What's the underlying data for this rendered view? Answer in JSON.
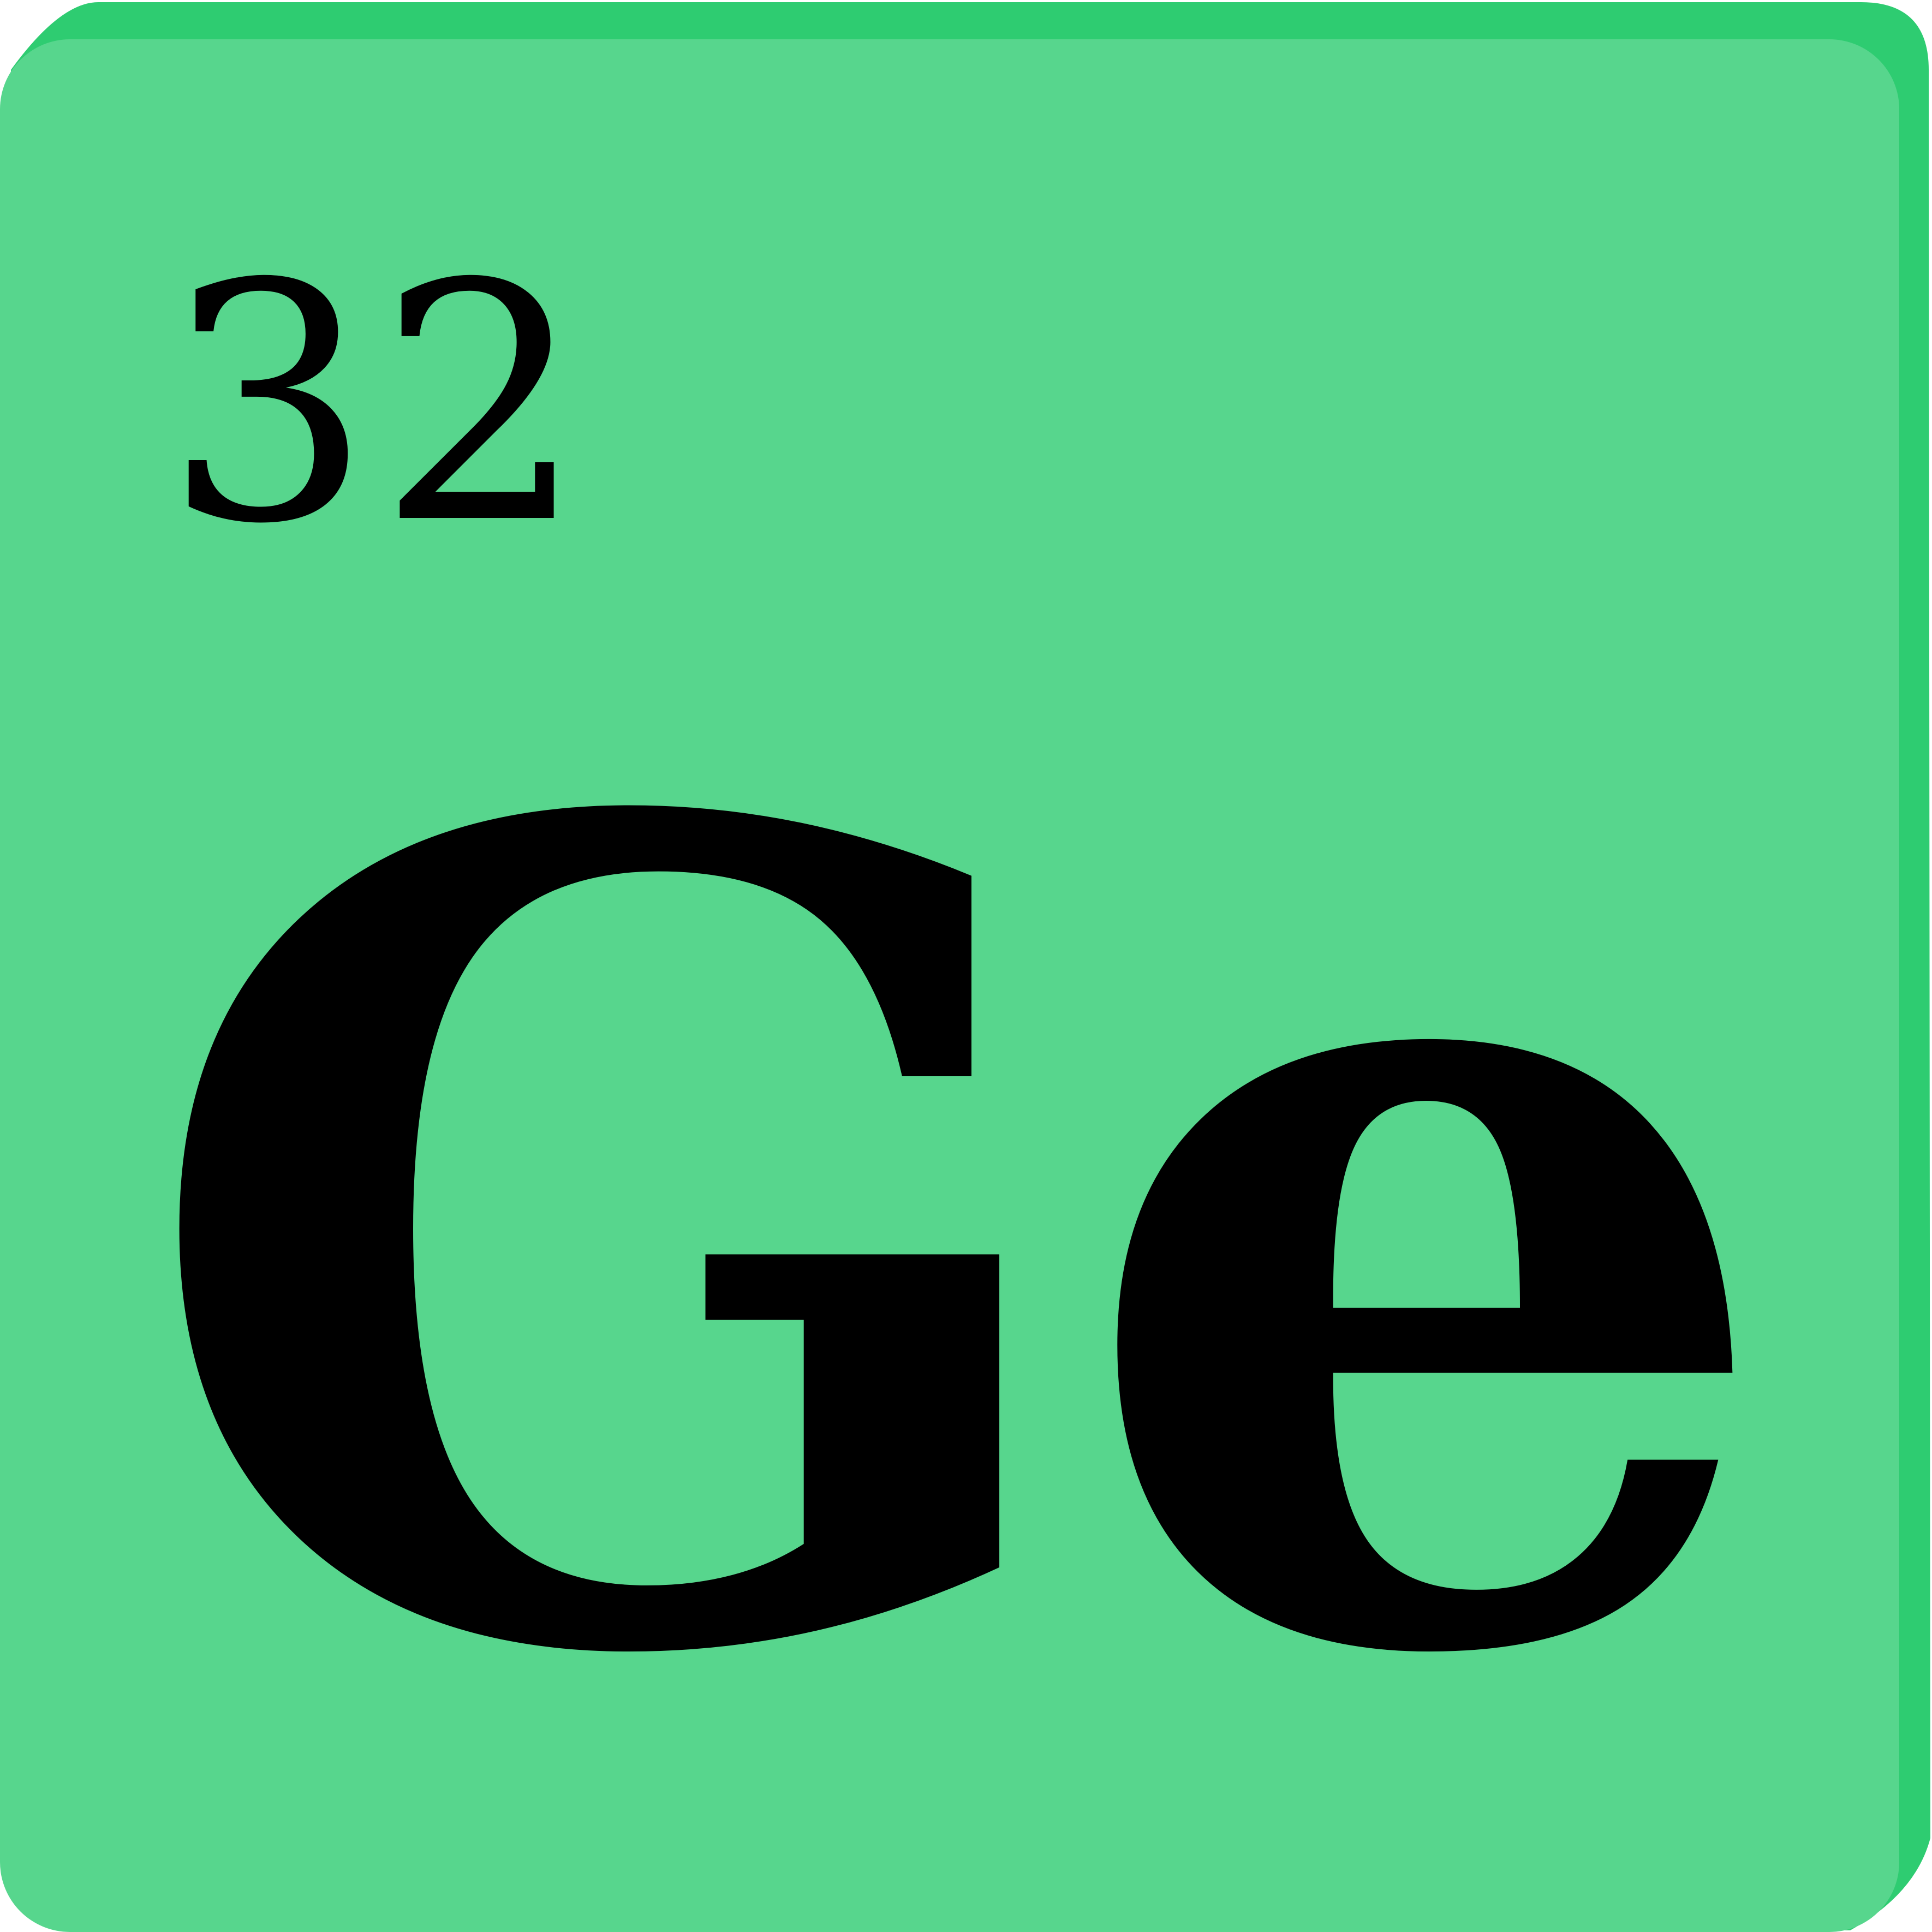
{
  "element": {
    "atomic_number": "32",
    "symbol": "Ge"
  },
  "colors": {
    "tile_face": "#57d68d",
    "tile_shadow": "#2ecc71",
    "text": "#000000"
  }
}
